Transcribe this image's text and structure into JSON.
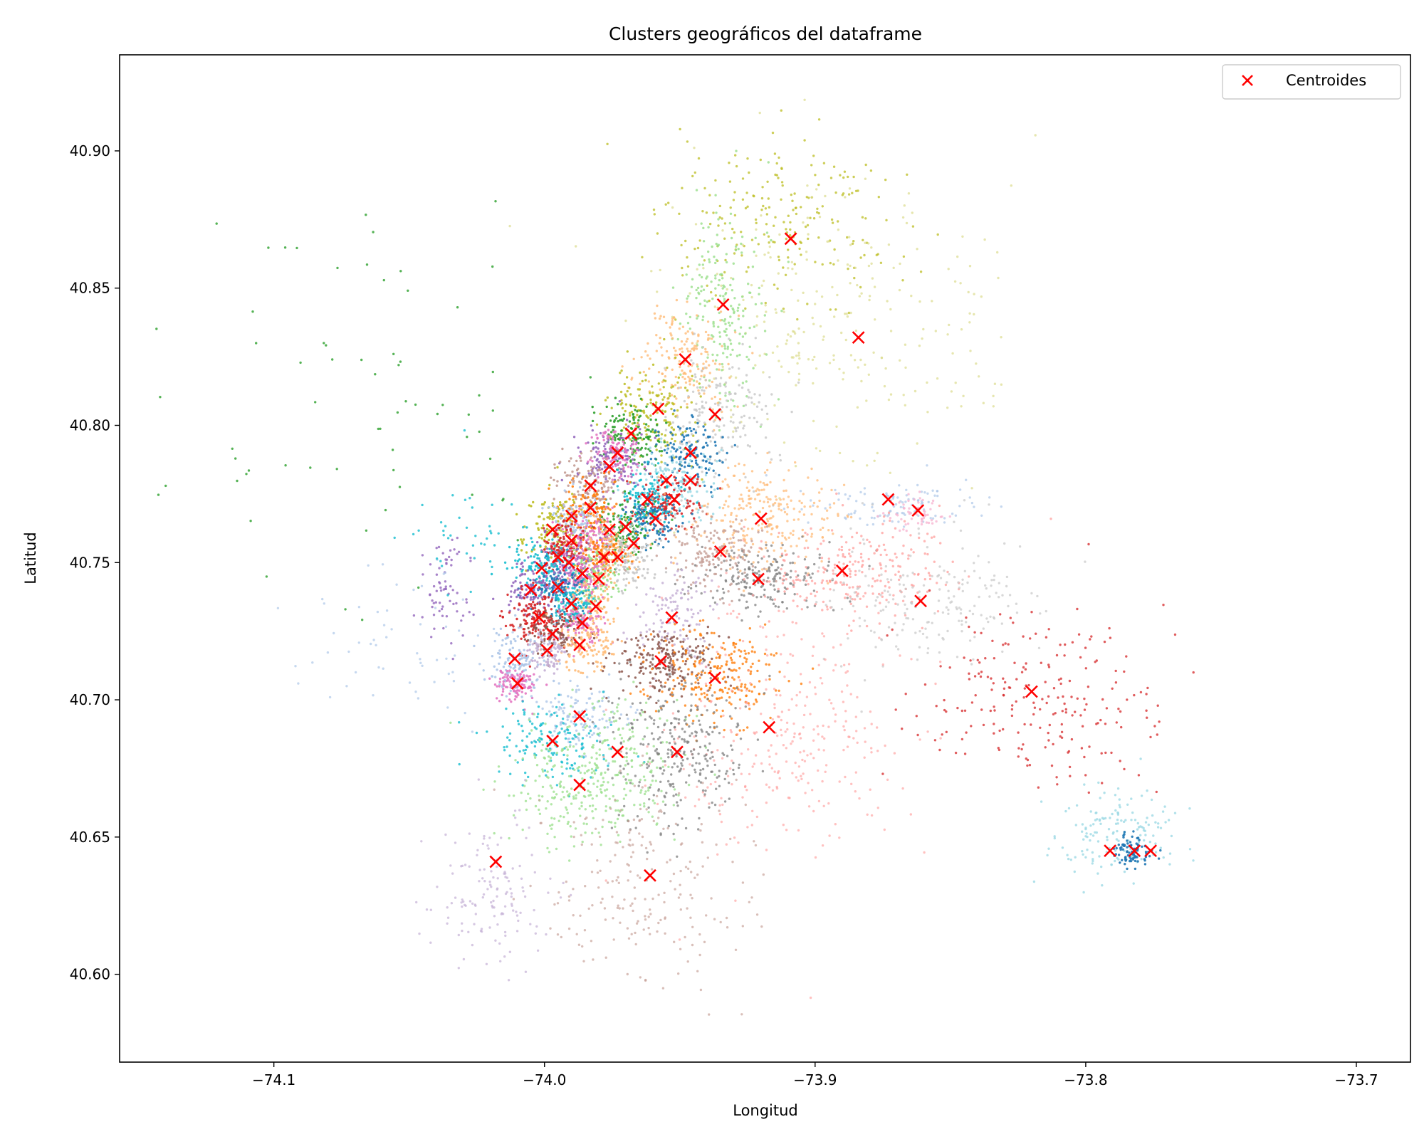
{
  "chart_data": {
    "type": "scatter",
    "title": "Clusters geográficos del dataframe",
    "xlabel": "Longitud",
    "ylabel": "Latitud",
    "xlim": [
      -74.157,
      -73.68
    ],
    "ylim": [
      40.568,
      40.935
    ],
    "xticks": [
      -74.1,
      -74.0,
      -73.9,
      -73.8,
      -73.7
    ],
    "xtick_labels": [
      "−74.1",
      "−74.0",
      "−73.9",
      "−73.8",
      "−73.7"
    ],
    "yticks": [
      40.6,
      40.65,
      40.7,
      40.75,
      40.8,
      40.85,
      40.9
    ],
    "ytick_labels": [
      "40.60",
      "40.65",
      "40.70",
      "40.75",
      "40.80",
      "40.85",
      "40.90"
    ],
    "grid": false,
    "legend_position": "top-right",
    "legend": [
      {
        "label": "Centroides",
        "marker": "x",
        "color": "#ff0000"
      }
    ],
    "clusters": [
      {
        "color": "#bcbd22",
        "center": [
          -73.912,
          40.872
        ],
        "spread": [
          0.022,
          0.016
        ],
        "n": 220,
        "alpha": 0.75
      },
      {
        "color": "#dbdb8d",
        "center": [
          -73.893,
          40.836
        ],
        "spread": [
          0.03,
          0.025
        ],
        "n": 260,
        "alpha": 0.7
      },
      {
        "color": "#98df8a",
        "center": [
          -73.935,
          40.843
        ],
        "spread": [
          0.008,
          0.018
        ],
        "n": 200,
        "alpha": 0.8
      },
      {
        "color": "#ffbb78",
        "center": [
          -73.948,
          40.823
        ],
        "spread": [
          0.008,
          0.01
        ],
        "n": 180,
        "alpha": 0.8
      },
      {
        "color": "#bcbd22",
        "center": [
          -73.958,
          40.806
        ],
        "spread": [
          0.008,
          0.009
        ],
        "n": 170,
        "alpha": 0.85
      },
      {
        "color": "#c7c7c7",
        "center": [
          -73.937,
          40.804
        ],
        "spread": [
          0.01,
          0.013
        ],
        "n": 180,
        "alpha": 0.8
      },
      {
        "color": "#2ca02c",
        "center": [
          -73.968,
          40.797
        ],
        "spread": [
          0.006,
          0.006
        ],
        "n": 140,
        "alpha": 0.9
      },
      {
        "color": "#1f77b4",
        "center": [
          -73.947,
          40.789
        ],
        "spread": [
          0.007,
          0.007
        ],
        "n": 140,
        "alpha": 0.9
      },
      {
        "color": "#9467bd",
        "center": [
          -73.976,
          40.788
        ],
        "spread": [
          0.006,
          0.007
        ],
        "n": 140,
        "alpha": 0.9
      },
      {
        "color": "#e377c2",
        "center": [
          -73.973,
          40.79
        ],
        "spread": [
          0.005,
          0.005
        ],
        "n": 110,
        "alpha": 0.9
      },
      {
        "color": "#9edae5",
        "center": [
          -73.952,
          40.78
        ],
        "spread": [
          0.007,
          0.006
        ],
        "n": 140,
        "alpha": 0.9
      },
      {
        "color": "#d62728",
        "center": [
          -73.955,
          40.772
        ],
        "spread": [
          0.006,
          0.005
        ],
        "n": 140,
        "alpha": 0.9
      },
      {
        "color": "#c49c94",
        "center": [
          -73.983,
          40.778
        ],
        "spread": [
          0.006,
          0.006
        ],
        "n": 140,
        "alpha": 0.9
      },
      {
        "color": "#17becf",
        "center": [
          -73.962,
          40.772
        ],
        "spread": [
          0.006,
          0.005
        ],
        "n": 120,
        "alpha": 0.9
      },
      {
        "color": "#2ca02c",
        "center": [
          -73.97,
          40.763
        ],
        "spread": [
          0.006,
          0.005
        ],
        "n": 130,
        "alpha": 0.9
      },
      {
        "color": "#1f77b4",
        "center": [
          -73.96,
          40.766
        ],
        "spread": [
          0.005,
          0.005
        ],
        "n": 110,
        "alpha": 0.9
      },
      {
        "color": "#bcbd22",
        "center": [
          -73.997,
          40.762
        ],
        "spread": [
          0.006,
          0.006
        ],
        "n": 140,
        "alpha": 0.9
      },
      {
        "color": "#ff7f0e",
        "center": [
          -73.983,
          40.77
        ],
        "spread": [
          0.005,
          0.005
        ],
        "n": 120,
        "alpha": 0.9
      },
      {
        "color": "#aec7e8",
        "center": [
          -73.99,
          40.766
        ],
        "spread": [
          0.004,
          0.004
        ],
        "n": 90,
        "alpha": 0.9
      },
      {
        "color": "#e377c2",
        "center": [
          -73.983,
          40.759
        ],
        "spread": [
          0.006,
          0.005
        ],
        "n": 130,
        "alpha": 0.9
      },
      {
        "color": "#ffbb78",
        "center": [
          -73.976,
          40.753
        ],
        "spread": [
          0.006,
          0.005
        ],
        "n": 130,
        "alpha": 0.9
      },
      {
        "color": "#ff7f0e",
        "center": [
          -73.979,
          40.752
        ],
        "spread": [
          0.004,
          0.004
        ],
        "n": 100,
        "alpha": 0.9
      },
      {
        "color": "#c7c7c7",
        "center": [
          -73.968,
          40.752
        ],
        "spread": [
          0.005,
          0.006
        ],
        "n": 120,
        "alpha": 0.9
      },
      {
        "color": "#9467bd",
        "center": [
          -73.991,
          40.751
        ],
        "spread": [
          0.005,
          0.005
        ],
        "n": 130,
        "alpha": 0.9
      },
      {
        "color": "#d62728",
        "center": [
          -73.993,
          40.757
        ],
        "spread": [
          0.004,
          0.004
        ],
        "n": 100,
        "alpha": 0.9
      },
      {
        "color": "#17becf",
        "center": [
          -74.001,
          40.748
        ],
        "spread": [
          0.006,
          0.005
        ],
        "n": 130,
        "alpha": 0.9
      },
      {
        "color": "#98df8a",
        "center": [
          -73.981,
          40.744
        ],
        "spread": [
          0.005,
          0.005
        ],
        "n": 120,
        "alpha": 0.9
      },
      {
        "color": "#e377c2",
        "center": [
          -73.987,
          40.746
        ],
        "spread": [
          0.004,
          0.004
        ],
        "n": 100,
        "alpha": 0.9
      },
      {
        "color": "#1f77b4",
        "center": [
          -73.994,
          40.74
        ],
        "spread": [
          0.005,
          0.005
        ],
        "n": 130,
        "alpha": 0.9
      },
      {
        "color": "#9467bd",
        "center": [
          -74.004,
          40.74
        ],
        "spread": [
          0.005,
          0.005
        ],
        "n": 120,
        "alpha": 0.9
      },
      {
        "color": "#ffbb78",
        "center": [
          -73.984,
          40.735
        ],
        "spread": [
          0.005,
          0.005
        ],
        "n": 110,
        "alpha": 0.9
      },
      {
        "color": "#17becf",
        "center": [
          -73.99,
          40.735
        ],
        "spread": [
          0.004,
          0.004
        ],
        "n": 100,
        "alpha": 0.9
      },
      {
        "color": "#d62728",
        "center": [
          -74.003,
          40.73
        ],
        "spread": [
          0.006,
          0.005
        ],
        "n": 160,
        "alpha": 0.9
      },
      {
        "color": "#e377c2",
        "center": [
          -73.986,
          40.728
        ],
        "spread": [
          0.004,
          0.004
        ],
        "n": 100,
        "alpha": 0.9
      },
      {
        "color": "#8c564b",
        "center": [
          -73.997,
          40.724
        ],
        "spread": [
          0.005,
          0.004
        ],
        "n": 110,
        "alpha": 0.9
      },
      {
        "color": "#ffbb78",
        "center": [
          -73.985,
          40.719
        ],
        "spread": [
          0.006,
          0.005
        ],
        "n": 120,
        "alpha": 0.9
      },
      {
        "color": "#c5b0d5",
        "center": [
          -73.999,
          40.718
        ],
        "spread": [
          0.004,
          0.004
        ],
        "n": 100,
        "alpha": 0.9
      },
      {
        "color": "#aec7e8",
        "center": [
          -74.011,
          40.714
        ],
        "spread": [
          0.005,
          0.006
        ],
        "n": 130,
        "alpha": 0.9
      },
      {
        "color": "#e377c2",
        "center": [
          -74.01,
          40.706
        ],
        "spread": [
          0.004,
          0.003
        ],
        "n": 110,
        "alpha": 0.9
      },
      {
        "color": "#ffbb78",
        "center": [
          -73.92,
          40.767
        ],
        "spread": [
          0.014,
          0.01
        ],
        "n": 260,
        "alpha": 0.75
      },
      {
        "color": "#aec7e8",
        "center": [
          -73.872,
          40.771
        ],
        "spread": [
          0.015,
          0.004
        ],
        "n": 110,
        "alpha": 0.7
      },
      {
        "color": "#f7b6d2",
        "center": [
          -73.862,
          40.768
        ],
        "spread": [
          0.005,
          0.003
        ],
        "n": 60,
        "alpha": 0.8
      },
      {
        "color": "#c49c94",
        "center": [
          -73.937,
          40.754
        ],
        "spread": [
          0.01,
          0.007
        ],
        "n": 160,
        "alpha": 0.8
      },
      {
        "color": "#7f7f7f",
        "center": [
          -73.92,
          40.744
        ],
        "spread": [
          0.013,
          0.006
        ],
        "n": 200,
        "alpha": 0.75
      },
      {
        "color": "#ff9896",
        "center": [
          -73.89,
          40.747
        ],
        "spread": [
          0.02,
          0.009
        ],
        "n": 260,
        "alpha": 0.7
      },
      {
        "color": "#c7c7c7",
        "center": [
          -73.86,
          40.736
        ],
        "spread": [
          0.02,
          0.012
        ],
        "n": 200,
        "alpha": 0.7
      },
      {
        "color": "#c5b0d5",
        "center": [
          -73.953,
          40.73
        ],
        "spread": [
          0.006,
          0.008
        ],
        "n": 120,
        "alpha": 0.85
      },
      {
        "color": "#8c564b",
        "center": [
          -73.955,
          40.714
        ],
        "spread": [
          0.01,
          0.006
        ],
        "n": 220,
        "alpha": 0.85
      },
      {
        "color": "#ff7f0e",
        "center": [
          -73.935,
          40.708
        ],
        "spread": [
          0.011,
          0.009
        ],
        "n": 240,
        "alpha": 0.8
      },
      {
        "color": "#ff9896",
        "center": [
          -73.915,
          40.69
        ],
        "spread": [
          0.022,
          0.022
        ],
        "n": 320,
        "alpha": 0.6
      },
      {
        "color": "#aec7e8",
        "center": [
          -73.987,
          40.694
        ],
        "spread": [
          0.008,
          0.006
        ],
        "n": 140,
        "alpha": 0.8
      },
      {
        "color": "#17becf",
        "center": [
          -73.998,
          40.684
        ],
        "spread": [
          0.012,
          0.007
        ],
        "n": 150,
        "alpha": 0.8
      },
      {
        "color": "#98df8a",
        "center": [
          -73.975,
          40.678
        ],
        "spread": [
          0.014,
          0.012
        ],
        "n": 220,
        "alpha": 0.75
      },
      {
        "color": "#98df8a",
        "center": [
          -73.99,
          40.665
        ],
        "spread": [
          0.012,
          0.01
        ],
        "n": 140,
        "alpha": 0.75
      },
      {
        "color": "#7f7f7f",
        "center": [
          -73.951,
          40.682
        ],
        "spread": [
          0.012,
          0.014
        ],
        "n": 300,
        "alpha": 0.75
      },
      {
        "color": "#c49c94",
        "center": [
          -73.962,
          40.632
        ],
        "spread": [
          0.02,
          0.018
        ],
        "n": 220,
        "alpha": 0.65
      },
      {
        "color": "#c5b0d5",
        "center": [
          -74.02,
          40.63
        ],
        "spread": [
          0.012,
          0.014
        ],
        "n": 140,
        "alpha": 0.7
      },
      {
        "color": "#d62728",
        "center": [
          -73.818,
          40.702
        ],
        "spread": [
          0.022,
          0.016
        ],
        "n": 220,
        "alpha": 0.75
      },
      {
        "color": "#9edae5",
        "center": [
          -73.79,
          40.652
        ],
        "spread": [
          0.012,
          0.008
        ],
        "n": 160,
        "alpha": 0.8
      },
      {
        "color": "#1f77b4",
        "center": [
          -73.783,
          40.645
        ],
        "spread": [
          0.004,
          0.003
        ],
        "n": 90,
        "alpha": 0.9
      },
      {
        "color": "#9467bd",
        "center": [
          -74.037,
          40.738
        ],
        "spread": [
          0.005,
          0.01
        ],
        "n": 70,
        "alpha": 0.8
      },
      {
        "color": "#2ca02c",
        "center": [
          -74.075,
          40.81
        ],
        "spread": [
          0.045,
          0.035
        ],
        "n": 70,
        "alpha": 0.8
      },
      {
        "color": "#aec7e8",
        "center": [
          -74.05,
          40.72
        ],
        "spread": [
          0.02,
          0.015
        ],
        "n": 60,
        "alpha": 0.7
      },
      {
        "color": "#17becf",
        "center": [
          -74.03,
          40.76
        ],
        "spread": [
          0.012,
          0.01
        ],
        "n": 40,
        "alpha": 0.8
      }
    ],
    "centroids": [
      [
        -73.909,
        40.868
      ],
      [
        -73.934,
        40.844
      ],
      [
        -73.884,
        40.832
      ],
      [
        -73.948,
        40.824
      ],
      [
        -73.958,
        40.806
      ],
      [
        -73.937,
        40.804
      ],
      [
        -73.968,
        40.797
      ],
      [
        -73.973,
        40.79
      ],
      [
        -73.946,
        40.79
      ],
      [
        -73.976,
        40.785
      ],
      [
        -73.983,
        40.778
      ],
      [
        -73.955,
        40.78
      ],
      [
        -73.946,
        40.78
      ],
      [
        -73.962,
        40.773
      ],
      [
        -73.952,
        40.773
      ],
      [
        -73.873,
        40.773
      ],
      [
        -73.862,
        40.769
      ],
      [
        -73.983,
        40.77
      ],
      [
        -73.99,
        40.767
      ],
      [
        -73.92,
        40.766
      ],
      [
        -73.959,
        40.766
      ],
      [
        -73.97,
        40.763
      ],
      [
        -73.997,
        40.762
      ],
      [
        -73.976,
        40.762
      ],
      [
        -73.99,
        40.758
      ],
      [
        -73.967,
        40.757
      ],
      [
        -73.935,
        40.754
      ],
      [
        -73.978,
        40.752
      ],
      [
        -73.973,
        40.752
      ],
      [
        -73.995,
        40.752
      ],
      [
        -73.991,
        40.75
      ],
      [
        -74.001,
        40.748
      ],
      [
        -73.986,
        40.746
      ],
      [
        -73.89,
        40.747
      ],
      [
        -73.921,
        40.744
      ],
      [
        -73.98,
        40.744
      ],
      [
        -73.995,
        40.741
      ],
      [
        -74.005,
        40.74
      ],
      [
        -73.861,
        40.736
      ],
      [
        -73.99,
        40.735
      ],
      [
        -73.981,
        40.734
      ],
      [
        -74.002,
        40.73
      ],
      [
        -73.953,
        40.73
      ],
      [
        -73.986,
        40.728
      ],
      [
        -73.997,
        40.724
      ],
      [
        -73.987,
        40.72
      ],
      [
        -73.999,
        40.718
      ],
      [
        -74.011,
        40.715
      ],
      [
        -73.957,
        40.714
      ],
      [
        -73.937,
        40.708
      ],
      [
        -74.01,
        40.706
      ],
      [
        -73.82,
        40.703
      ],
      [
        -73.987,
        40.694
      ],
      [
        -73.917,
        40.69
      ],
      [
        -73.997,
        40.685
      ],
      [
        -73.973,
        40.681
      ],
      [
        -73.951,
        40.681
      ],
      [
        -73.987,
        40.669
      ],
      [
        -73.791,
        40.645
      ],
      [
        -73.782,
        40.645
      ],
      [
        -73.776,
        40.645
      ],
      [
        -74.018,
        40.641
      ],
      [
        -73.961,
        40.636
      ]
    ]
  }
}
